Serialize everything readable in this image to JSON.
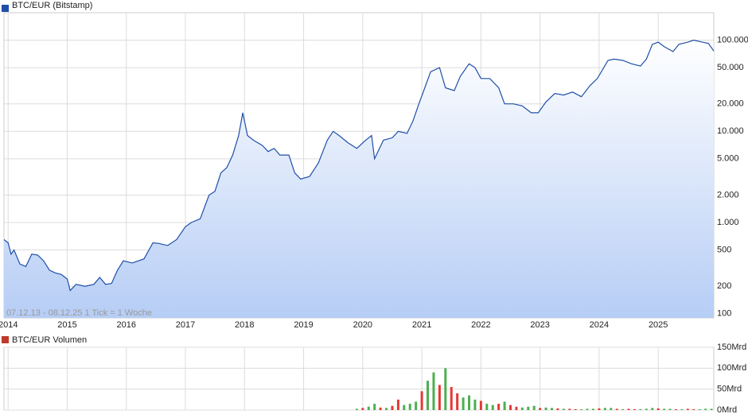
{
  "chart_data": [
    {
      "type": "line",
      "series": [
        {
          "name": "BTC/EUR (Bitstamp)",
          "color": "#1f4fa8",
          "values": [
            650,
            600,
            450,
            500,
            350,
            330,
            450,
            440,
            380,
            300,
            280,
            270,
            240,
            180,
            210,
            200,
            210,
            250,
            210,
            215,
            300,
            380,
            360,
            400,
            600,
            590,
            560,
            650,
            900,
            1000,
            1100,
            2000,
            2200,
            3500,
            4000,
            5500,
            9000,
            16000,
            9000,
            8000,
            7000,
            6000,
            6500,
            5500,
            5500,
            3500,
            3000,
            3200,
            4500,
            8000,
            10000,
            9000,
            7500,
            6500,
            8000,
            9000,
            5000,
            8000,
            8500,
            10000,
            9500,
            13000,
            20000,
            30000,
            45000,
            50000,
            30000,
            28000,
            40000,
            55000,
            50000,
            38000,
            38000,
            30000,
            20000,
            20000,
            19000,
            16000,
            16000,
            21000,
            26000,
            25000,
            27000,
            24000,
            32000,
            38000,
            60000,
            62000,
            60000,
            55000,
            52000,
            62000,
            90000,
            95000,
            85000,
            75000,
            90000,
            95000,
            100000,
            95000,
            92000,
            76000
          ]
        }
      ],
      "x": [
        2013.93,
        2014.0,
        2014.05,
        2014.1,
        2014.2,
        2014.3,
        2014.4,
        2014.5,
        2014.6,
        2014.7,
        2014.8,
        2014.9,
        2015.0,
        2015.05,
        2015.15,
        2015.3,
        2015.45,
        2015.55,
        2015.65,
        2015.75,
        2015.85,
        2015.95,
        2016.1,
        2016.3,
        2016.45,
        2016.55,
        2016.7,
        2016.85,
        2017.0,
        2017.1,
        2017.25,
        2017.4,
        2017.5,
        2017.6,
        2017.7,
        2017.8,
        2017.9,
        2017.97,
        2018.05,
        2018.15,
        2018.3,
        2018.4,
        2018.5,
        2018.6,
        2018.75,
        2018.85,
        2018.95,
        2019.1,
        2019.25,
        2019.4,
        2019.5,
        2019.6,
        2019.75,
        2019.9,
        2020.05,
        2020.15,
        2020.2,
        2020.35,
        2020.5,
        2020.6,
        2020.75,
        2020.85,
        2020.95,
        2021.05,
        2021.15,
        2021.3,
        2021.4,
        2021.55,
        2021.65,
        2021.8,
        2021.9,
        2022.0,
        2022.15,
        2022.3,
        2022.4,
        2022.55,
        2022.7,
        2022.85,
        2022.97,
        2023.1,
        2023.25,
        2023.4,
        2023.55,
        2023.7,
        2023.85,
        2023.97,
        2024.15,
        2024.25,
        2024.4,
        2024.55,
        2024.7,
        2024.8,
        2024.9,
        2025.0,
        2025.1,
        2025.25,
        2025.35,
        2025.5,
        2025.6,
        2025.75,
        2025.85,
        2025.94
      ],
      "log_scale": true,
      "grid": true,
      "xlim": [
        2013.93,
        2025.94
      ],
      "xticks": [
        2014,
        2015,
        2016,
        2017,
        2018,
        2019,
        2020,
        2021,
        2022,
        2023,
        2024,
        2025
      ],
      "ylim": [
        90,
        200000
      ],
      "yticks": [
        100,
        200,
        500,
        {
          "value": 1000,
          "label": "1.000"
        },
        {
          "value": 2000,
          "label": "2.000"
        },
        {
          "value": 5000,
          "label": "5.000"
        },
        {
          "value": 10000,
          "label": "10.000"
        },
        {
          "value": 20000,
          "label": "20.000"
        },
        {
          "value": 50000,
          "label": "50.000"
        },
        {
          "value": 100000,
          "label": "100.000"
        }
      ],
      "annotation": "07.12.13 - 08.12.25   1 Tick = 1 Woche"
    },
    {
      "type": "bar",
      "series": [
        {
          "name": "BTC/EUR Volumen",
          "color": "#c0392b",
          "values": [
            3,
            5,
            8,
            15,
            6,
            5,
            10,
            25,
            12,
            15,
            20,
            45,
            70,
            90,
            60,
            100,
            55,
            40,
            30,
            35,
            25,
            22,
            15,
            12,
            15,
            20,
            12,
            8,
            6,
            8,
            10,
            5,
            6,
            5,
            4,
            3,
            3,
            2,
            2,
            3,
            3,
            4,
            5,
            5,
            3,
            2,
            3,
            2,
            2,
            3,
            5,
            4,
            3,
            3,
            2,
            2,
            3,
            2,
            2,
            3,
            3
          ]
        }
      ],
      "bar_colors": [
        "#4caf50",
        "#e53935",
        "#4caf50",
        "#4caf50",
        "#e53935",
        "#4caf50",
        "#e53935",
        "#e53935",
        "#4caf50",
        "#4caf50",
        "#4caf50",
        "#e53935",
        "#4caf50",
        "#4caf50",
        "#e53935",
        "#4caf50",
        "#e53935",
        "#e53935",
        "#4caf50",
        "#4caf50",
        "#4caf50",
        "#e53935",
        "#4caf50",
        "#4caf50",
        "#e53935",
        "#4caf50",
        "#e53935",
        "#e53935",
        "#4caf50",
        "#4caf50",
        "#4caf50",
        "#e53935",
        "#4caf50",
        "#4caf50",
        "#e53935",
        "#4caf50",
        "#e53935",
        "#e53935",
        "#4caf50",
        "#4caf50",
        "#4caf50",
        "#e53935",
        "#4caf50",
        "#4caf50",
        "#e53935",
        "#4caf50",
        "#e53935",
        "#e53935",
        "#4caf50",
        "#4caf50",
        "#4caf50",
        "#e53935",
        "#4caf50",
        "#4caf50",
        "#e53935",
        "#4caf50",
        "#e53935",
        "#e53935",
        "#4caf50",
        "#4caf50",
        "#4caf50"
      ],
      "x": [
        2019.9,
        2020.0,
        2020.1,
        2020.2,
        2020.3,
        2020.4,
        2020.5,
        2020.6,
        2020.7,
        2020.8,
        2020.9,
        2021.0,
        2021.1,
        2021.2,
        2021.3,
        2021.4,
        2021.5,
        2021.6,
        2021.7,
        2021.8,
        2021.9,
        2022.0,
        2022.1,
        2022.2,
        2022.3,
        2022.4,
        2022.5,
        2022.6,
        2022.7,
        2022.8,
        2022.9,
        2023.0,
        2023.1,
        2023.2,
        2023.3,
        2023.4,
        2023.5,
        2023.6,
        2023.7,
        2023.8,
        2023.9,
        2024.0,
        2024.1,
        2024.2,
        2024.3,
        2024.4,
        2024.5,
        2024.6,
        2024.7,
        2024.8,
        2024.9,
        2025.0,
        2025.1,
        2025.2,
        2025.3,
        2025.4,
        2025.5,
        2025.6,
        2025.7,
        2025.8,
        2025.9
      ],
      "ylim": [
        0,
        150
      ],
      "yticks": [
        {
          "value": 0,
          "label": "0Mrd"
        },
        {
          "value": 50,
          "label": "50Mrd"
        },
        {
          "value": 100,
          "label": "100Mrd"
        },
        {
          "value": 150,
          "label": "150Mrd"
        }
      ]
    }
  ]
}
